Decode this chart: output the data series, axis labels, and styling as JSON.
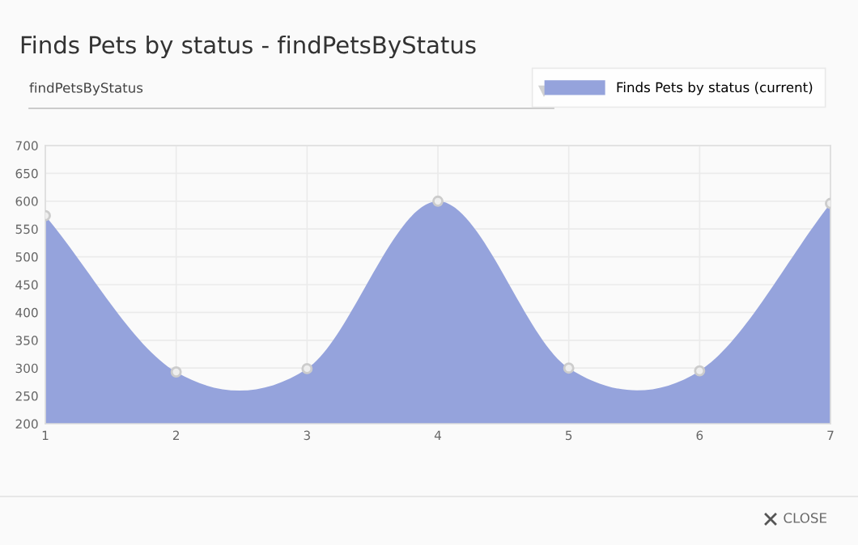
{
  "chart_data": {
    "type": "area",
    "title": "Finds Pets by status - findPetsByStatus",
    "x": [
      1,
      2,
      3,
      4,
      5,
      6,
      7
    ],
    "series": [
      {
        "name": "Finds Pets by status (current)",
        "color": "#95a3dc",
        "values": [
          574,
          293,
          299,
          600,
          300,
          295,
          596
        ]
      }
    ],
    "xlim": [
      1,
      7
    ],
    "xticks": [
      1,
      2,
      3,
      4,
      5,
      6,
      7
    ],
    "ylim": [
      200,
      700
    ],
    "yticks": [
      200,
      250,
      300,
      350,
      400,
      450,
      500,
      550,
      600,
      650,
      700
    ],
    "grid": true,
    "legend": "top right",
    "marker": "circle",
    "annotations": [
      "findPetsByStatus",
      "CLOSE"
    ]
  }
}
